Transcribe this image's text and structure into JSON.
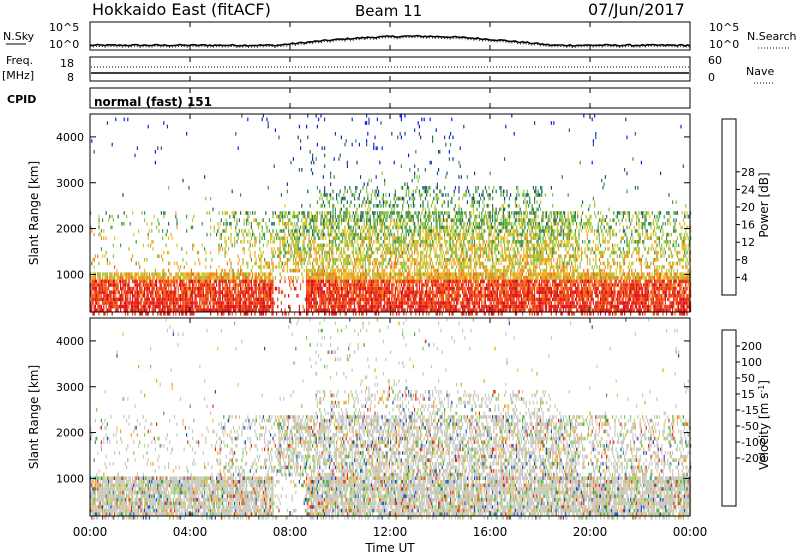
{
  "header": {
    "station": "Hokkaido East (fitACF)",
    "beam": "Beam 11",
    "date": "07/Jun/2017"
  },
  "noise_panel": {
    "left_label": "N.Sky",
    "right_label": "N.Search",
    "left_ticks": [
      "10^5",
      "10^0"
    ],
    "right_ticks": [
      "10^5",
      "10^0"
    ]
  },
  "freq_panel": {
    "left_label_1": "Freq.",
    "left_label_2": "[MHz]",
    "right_label": "Nave",
    "left_ticks": [
      "18",
      "8"
    ],
    "right_ticks": [
      "60",
      "0"
    ]
  },
  "cpid_panel": {
    "label": "CPID",
    "text": "normal (fast) 151"
  },
  "x_axis": {
    "label": "Time UT",
    "ticks": [
      "00:00",
      "04:00",
      "08:00",
      "12:00",
      "16:00",
      "20:00",
      "00:00"
    ]
  },
  "chart_data": [
    {
      "type": "heatmap",
      "ylabel": "Slant Range [km]",
      "yticks": [
        1000,
        2000,
        3000,
        4000
      ],
      "ylim": [
        180,
        4500
      ],
      "xlim_hours": [
        0,
        24
      ],
      "colorbar": {
        "label": "Power [dB]",
        "ticks": [
          4,
          8,
          12,
          16,
          20,
          24,
          28
        ],
        "colors": [
          "#0a1ef0",
          "#1e3c9a",
          "#2a6a5a",
          "#3c9a4a",
          "#86c83c",
          "#e6c020",
          "#f0a020",
          "#f07010",
          "#f04010",
          "#e01010"
        ]
      }
    },
    {
      "type": "heatmap",
      "ylabel": "Slant Range [km]",
      "yticks": [
        1000,
        2000,
        3000,
        4000
      ],
      "ylim": [
        180,
        4500
      ],
      "xlim_hours": [
        0,
        24
      ],
      "colorbar": {
        "label": "Velocity [m s^-1]",
        "ticks": [
          200,
          100,
          50,
          15,
          -15,
          -50,
          -100,
          -200
        ],
        "colors": [
          "#1030a0",
          "#2050c0",
          "#2a7a4a",
          "#3aa83a",
          "#7cd04a",
          "#c8c8c0",
          "#f0c040",
          "#f0a020",
          "#f07010",
          "#e83010",
          "#e01010"
        ]
      }
    }
  ]
}
